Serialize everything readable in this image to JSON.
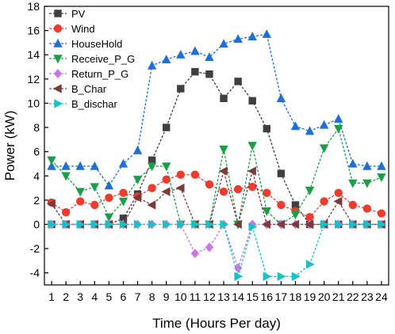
{
  "chart_data": {
    "type": "line",
    "xlabel": "Time (Hours Per day)",
    "ylabel": "Power (kW)",
    "xlim": [
      0.5,
      24.5
    ],
    "ylim": [
      -5,
      18
    ],
    "x": [
      1,
      2,
      3,
      4,
      5,
      6,
      7,
      8,
      9,
      10,
      11,
      12,
      13,
      14,
      15,
      16,
      17,
      18,
      19,
      20,
      21,
      22,
      23,
      24
    ],
    "x_tick_labels": [
      "1",
      "2",
      "3",
      "4",
      "5",
      "6",
      "7",
      "8",
      "9",
      "10",
      "11",
      "12",
      "13",
      "14",
      "15",
      "16",
      "17",
      "18",
      "19",
      "20",
      "21",
      "22",
      "23",
      "24"
    ],
    "y_ticks": [
      -4,
      -2,
      0,
      2,
      4,
      6,
      8,
      10,
      12,
      14,
      16,
      18
    ],
    "y_tick_labels": [
      "-4",
      "-2",
      "0",
      "2",
      "4",
      "6",
      "8",
      "10",
      "12",
      "14",
      "16",
      "18"
    ],
    "grid": false,
    "legend_position": "top-left",
    "series": [
      {
        "name": "PV",
        "color": "#3f3f3f",
        "marker": "square",
        "values": [
          0,
          0,
          0,
          0,
          0,
          0.5,
          2.5,
          5.3,
          8.0,
          11.2,
          12.6,
          12.4,
          10.4,
          11.8,
          10.2,
          7.9,
          4.2,
          1.6,
          0,
          0,
          0,
          0,
          0,
          0
        ]
      },
      {
        "name": "Wind",
        "color": "#ee3b2f",
        "marker": "circle",
        "values": [
          1.8,
          1.0,
          1.9,
          1.6,
          2.2,
          2.6,
          2.3,
          3.0,
          3.7,
          4.1,
          4.1,
          3.3,
          2.7,
          2.9,
          3.1,
          2.6,
          1.6,
          1.1,
          0.6,
          1.9,
          2.6,
          1.6,
          1.3,
          0.9
        ]
      },
      {
        "name": "HouseHold",
        "color": "#1f6fd6",
        "marker": "triangle-up",
        "values": [
          4.8,
          4.8,
          4.8,
          4.8,
          3.2,
          5.0,
          6.1,
          13.1,
          13.6,
          14.0,
          14.3,
          13.8,
          14.9,
          15.3,
          15.5,
          15.7,
          10.4,
          8.1,
          7.7,
          8.2,
          8.7,
          5.0,
          4.8,
          4.8
        ]
      },
      {
        "name": "Receive_P_G",
        "color": "#1a9e4a",
        "marker": "triangle-down",
        "values": [
          5.3,
          4.0,
          2.7,
          3.1,
          0.6,
          1.9,
          3.7,
          4.8,
          4.8,
          0,
          0,
          0,
          6.2,
          0,
          6.5,
          1.1,
          0,
          0.8,
          2.8,
          6.3,
          7.9,
          3.4,
          3.4,
          3.9
        ]
      },
      {
        "name": "Return_P_G",
        "color": "#c778e6",
        "marker": "diamond",
        "values": [
          0,
          0,
          0,
          0,
          0,
          0,
          0,
          0,
          0,
          0,
          -2.4,
          -1.9,
          0,
          -3.6,
          0,
          0,
          0,
          0,
          0,
          0,
          0,
          0,
          0,
          0
        ]
      },
      {
        "name": "B_Char",
        "color": "#7a3b3b",
        "marker": "triangle-left",
        "values": [
          1.7,
          0,
          0,
          0,
          0,
          0,
          2.2,
          1.6,
          2.7,
          3.0,
          0,
          0,
          4.4,
          0,
          4.4,
          0,
          0,
          0,
          0,
          0,
          1.9,
          0,
          0,
          0
        ]
      },
      {
        "name": "B_dischar",
        "color": "#17c1c7",
        "marker": "triangle-right",
        "values": [
          0,
          0,
          0,
          0,
          0,
          0,
          0,
          0,
          0,
          0,
          0,
          0,
          0,
          -4.3,
          -0.2,
          -4.3,
          -4.3,
          -4.3,
          -3.3,
          0,
          0,
          0,
          0,
          0
        ]
      }
    ]
  }
}
